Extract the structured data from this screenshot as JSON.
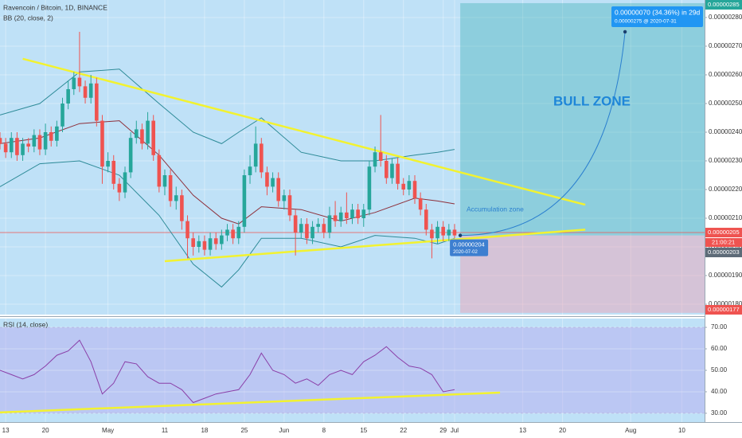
{
  "chart_data": [
    {
      "type": "candlestick",
      "title": "Ravencoin / Bitcoin, 1D, BINANCE",
      "indicator_label": "BB (20, close, 2)",
      "up_color": "#26a69a",
      "down_color": "#ef5350",
      "x": [
        "2020-04-12",
        "2020-04-13",
        "2020-04-14",
        "2020-04-15",
        "2020-04-16",
        "2020-04-17",
        "2020-04-18",
        "2020-04-19",
        "2020-04-20",
        "2020-04-21",
        "2020-04-22",
        "2020-04-23",
        "2020-04-24",
        "2020-04-25",
        "2020-04-26",
        "2020-04-27",
        "2020-04-28",
        "2020-04-29",
        "2020-04-30",
        "2020-05-01",
        "2020-05-02",
        "2020-05-03",
        "2020-05-04",
        "2020-05-05",
        "2020-05-06",
        "2020-05-07",
        "2020-05-08",
        "2020-05-09",
        "2020-05-10",
        "2020-05-11",
        "2020-05-12",
        "2020-05-13",
        "2020-05-14",
        "2020-05-15",
        "2020-05-16",
        "2020-05-17",
        "2020-05-18",
        "2020-05-19",
        "2020-05-20",
        "2020-05-21",
        "2020-05-22",
        "2020-05-23",
        "2020-05-24",
        "2020-05-25",
        "2020-05-26",
        "2020-05-27",
        "2020-05-28",
        "2020-05-29",
        "2020-05-30",
        "2020-05-31",
        "2020-06-01",
        "2020-06-02",
        "2020-06-03",
        "2020-06-04",
        "2020-06-05",
        "2020-06-06",
        "2020-06-07",
        "2020-06-08",
        "2020-06-09",
        "2020-06-10",
        "2020-06-11",
        "2020-06-12",
        "2020-06-13",
        "2020-06-14",
        "2020-06-15",
        "2020-06-16",
        "2020-06-17",
        "2020-06-18",
        "2020-06-19",
        "2020-06-20",
        "2020-06-21",
        "2020-06-22",
        "2020-06-23",
        "2020-06-24",
        "2020-06-25",
        "2020-06-26",
        "2020-06-27",
        "2020-06-28",
        "2020-06-29",
        "2020-06-30",
        "2020-07-01"
      ],
      "ohlc": [
        [
          2.38e-06,
          2.4e-06,
          2.34e-06,
          2.36e-06
        ],
        [
          2.36e-06,
          2.38e-06,
          2.31e-06,
          2.33e-06
        ],
        [
          2.33e-06,
          2.4e-06,
          2.31e-06,
          2.38e-06
        ],
        [
          2.38e-06,
          2.4e-06,
          2.3e-06,
          2.32e-06
        ],
        [
          2.32e-06,
          2.38e-06,
          2.3e-06,
          2.36e-06
        ],
        [
          2.36e-06,
          2.38e-06,
          2.33e-06,
          2.35e-06
        ],
        [
          2.35e-06,
          2.41e-06,
          2.33e-06,
          2.39e-06
        ],
        [
          2.39e-06,
          2.41e-06,
          2.32e-06,
          2.34e-06
        ],
        [
          2.34e-06,
          2.43e-06,
          2.32e-06,
          2.4e-06
        ],
        [
          2.4e-06,
          2.42e-06,
          2.35e-06,
          2.37e-06
        ],
        [
          2.37e-06,
          2.44e-06,
          2.35e-06,
          2.42e-06
        ],
        [
          2.42e-06,
          2.52e-06,
          2.4e-06,
          2.5e-06
        ],
        [
          2.5e-06,
          2.58e-06,
          2.48e-06,
          2.55e-06
        ],
        [
          2.55e-06,
          2.61e-06,
          2.53e-06,
          2.59e-06
        ],
        [
          2.59e-06,
          2.75e-06,
          2.54e-06,
          2.56e-06
        ],
        [
          2.56e-06,
          2.58e-06,
          2.5e-06,
          2.52e-06
        ],
        [
          2.52e-06,
          2.6e-06,
          2.5e-06,
          2.57e-06
        ],
        [
          2.57e-06,
          2.59e-06,
          2.42e-06,
          2.44e-06
        ],
        [
          2.44e-06,
          2.46e-06,
          2.22e-06,
          2.28e-06
        ],
        [
          2.28e-06,
          2.33e-06,
          2.26e-06,
          2.3e-06
        ],
        [
          2.3e-06,
          2.32e-06,
          2.2e-06,
          2.22e-06
        ],
        [
          2.22e-06,
          2.24e-06,
          2.16e-06,
          2.19e-06
        ],
        [
          2.19e-06,
          2.28e-06,
          2.17e-06,
          2.26e-06
        ],
        [
          2.26e-06,
          2.4e-06,
          2.24e-06,
          2.38e-06
        ],
        [
          2.38e-06,
          2.44e-06,
          2.36e-06,
          2.41e-06
        ],
        [
          2.41e-06,
          2.43e-06,
          2.34e-06,
          2.36e-06
        ],
        [
          2.36e-06,
          2.47e-06,
          2.34e-06,
          2.44e-06
        ],
        [
          2.44e-06,
          2.46e-06,
          2.3e-06,
          2.32e-06
        ],
        [
          2.32e-06,
          2.34e-06,
          2.19e-06,
          2.21e-06
        ],
        [
          2.21e-06,
          2.27e-06,
          2.18e-06,
          2.25e-06
        ],
        [
          2.25e-06,
          2.27e-06,
          2.14e-06,
          2.16e-06
        ],
        [
          2.16e-06,
          2.21e-06,
          2.13e-06,
          2.18e-06
        ],
        [
          2.18e-06,
          2.2e-06,
          2.06e-06,
          2.09e-06
        ],
        [
          2.09e-06,
          2.11e-06,
          1.96e-06,
          2.03e-06
        ],
        [
          2.03e-06,
          2.05e-06,
          1.97e-06,
          2e-06
        ],
        [
          2e-06,
          2.04e-06,
          1.98e-06,
          2.02e-06
        ],
        [
          2.02e-06,
          2.04e-06,
          1.97e-06,
          1.99e-06
        ],
        [
          1.99e-06,
          2.05e-06,
          1.97e-06,
          2.03e-06
        ],
        [
          2.03e-06,
          2.05e-06,
          1.99e-06,
          2.01e-06
        ],
        [
          2.01e-06,
          2.06e-06,
          1.99e-06,
          2.04e-06
        ],
        [
          2.04e-06,
          2.08e-06,
          2.02e-06,
          2.06e-06
        ],
        [
          2.06e-06,
          2.08e-06,
          2.01e-06,
          2.03e-06
        ],
        [
          2.03e-06,
          2.09e-06,
          2.01e-06,
          2.07e-06
        ],
        [
          2.07e-06,
          2.27e-06,
          2.05e-06,
          2.25e-06
        ],
        [
          2.25e-06,
          2.32e-06,
          2.22e-06,
          2.28e-06
        ],
        [
          2.28e-06,
          2.42e-06,
          2.26e-06,
          2.36e-06
        ],
        [
          2.36e-06,
          2.38e-06,
          2.24e-06,
          2.26e-06
        ],
        [
          2.26e-06,
          2.28e-06,
          2.18e-06,
          2.21e-06
        ],
        [
          2.21e-06,
          2.26e-06,
          2.19e-06,
          2.24e-06
        ],
        [
          2.24e-06,
          2.26e-06,
          2.14e-06,
          2.16e-06
        ],
        [
          2.16e-06,
          2.2e-06,
          2.13e-06,
          2.18e-06
        ],
        [
          2.18e-06,
          2.2e-06,
          2.09e-06,
          2.11e-06
        ],
        [
          2.11e-06,
          2.13e-06,
          1.97e-06,
          2.05e-06
        ],
        [
          2.05e-06,
          2.1e-06,
          2.03e-06,
          2.08e-06
        ],
        [
          2.08e-06,
          2.1e-06,
          2.01e-06,
          2.03e-06
        ],
        [
          2.03e-06,
          2.09e-06,
          2.01e-06,
          2.07e-06
        ],
        [
          2.07e-06,
          2.1e-06,
          2.05e-06,
          2.08e-06
        ],
        [
          2.08e-06,
          2.1e-06,
          2.03e-06,
          2.05e-06
        ],
        [
          2.05e-06,
          2.14e-06,
          2.03e-06,
          2.11e-06
        ],
        [
          2.11e-06,
          2.16e-06,
          2.07e-06,
          2.09e-06
        ],
        [
          2.09e-06,
          2.14e-06,
          2.07e-06,
          2.12e-06
        ],
        [
          2.12e-06,
          2.19e-06,
          2.08e-06,
          2.1e-06
        ],
        [
          2.1e-06,
          2.15e-06,
          2.08e-06,
          2.13e-06
        ],
        [
          2.13e-06,
          2.15e-06,
          2.08e-06,
          2.1e-06
        ],
        [
          2.1e-06,
          2.15e-06,
          2.07e-06,
          2.13e-06
        ],
        [
          2.13e-06,
          2.3e-06,
          2.11e-06,
          2.28e-06
        ],
        [
          2.28e-06,
          2.35e-06,
          2.26e-06,
          2.33e-06
        ],
        [
          2.33e-06,
          2.46e-06,
          2.28e-06,
          2.3e-06
        ],
        [
          2.3e-06,
          2.32e-06,
          2.22e-06,
          2.24e-06
        ],
        [
          2.24e-06,
          2.31e-06,
          2.22e-06,
          2.29e-06
        ],
        [
          2.29e-06,
          2.31e-06,
          2.2e-06,
          2.22e-06
        ],
        [
          2.22e-06,
          2.24e-06,
          2.18e-06,
          2.2e-06
        ],
        [
          2.2e-06,
          2.25e-06,
          2.18e-06,
          2.23e-06
        ],
        [
          2.23e-06,
          2.25e-06,
          2.15e-06,
          2.17e-06
        ],
        [
          2.17e-06,
          2.19e-06,
          2.11e-06,
          2.13e-06
        ],
        [
          2.13e-06,
          2.15e-06,
          2.04e-06,
          2.06e-06
        ],
        [
          2.06e-06,
          2.08e-06,
          1.96e-06,
          2.03e-06
        ],
        [
          2.03e-06,
          2.09e-06,
          2.01e-06,
          2.07e-06
        ],
        [
          2.07e-06,
          2.09e-06,
          2.02e-06,
          2.04e-06
        ],
        [
          2.04e-06,
          2.08e-06,
          2.02e-06,
          2.06e-06
        ],
        [
          2.06e-06,
          2.08e-06,
          2.03e-06,
          2.04e-06
        ]
      ],
      "bollinger": {
        "x": [
          "2020-04-12",
          "2020-04-19",
          "2020-04-26",
          "2020-05-03",
          "2020-05-10",
          "2020-05-16",
          "2020-05-21",
          "2020-05-24",
          "2020-05-28",
          "2020-06-04",
          "2020-06-11",
          "2020-06-17",
          "2020-06-24",
          "2020-06-28",
          "2020-07-01"
        ],
        "upper": [
          2.46e-06,
          2.5e-06,
          2.61e-06,
          2.62e-06,
          2.5e-06,
          2.4e-06,
          2.36e-06,
          2.4e-06,
          2.45e-06,
          2.33e-06,
          2.3e-06,
          2.3e-06,
          2.32e-06,
          2.33e-06,
          2.34e-06
        ],
        "basis": [
          2.36e-06,
          2.38e-06,
          2.43e-06,
          2.44e-06,
          2.32e-06,
          2.18e-06,
          2.1e-06,
          2.08e-06,
          2.14e-06,
          2.13e-06,
          2.09e-06,
          2.12e-06,
          2.17e-06,
          2.16e-06,
          2.15e-06
        ],
        "lower": [
          2.21e-06,
          2.29e-06,
          2.3e-06,
          2.25e-06,
          2.11e-06,
          1.94e-06,
          1.86e-06,
          1.92e-06,
          2.03e-06,
          2.03e-06,
          2e-06,
          2.04e-06,
          2.03e-06,
          2.01e-06,
          2.03e-06
        ],
        "band_color": "#2e8b98",
        "basis_color": "#8e2f3a"
      },
      "trendlines": [
        {
          "x": [
            "2020-04-16",
            "2020-07-24"
          ],
          "y": [
            2.656e-06,
            2.147e-06
          ],
          "color": "#f2f230"
        },
        {
          "x": [
            "2020-05-11",
            "2020-07-24"
          ],
          "y": [
            1.95e-06,
            2.06e-06
          ],
          "color": "#f2f230"
        }
      ],
      "position": {
        "entry": 2.04e-06,
        "entry_label": "0.00000204",
        "entry_date": "2020-07-02",
        "target": 2.85e-06,
        "target_label": "0.00000285",
        "stop": 1.77e-06,
        "stop_label": "0.00000177"
      },
      "projection": {
        "value": 2.75e-06,
        "date": "2020-07-31",
        "label": "0.00000275 @ 2020-07-31",
        "change_label": "0.00000070 (34.36%) in 29d"
      },
      "current_price": {
        "value": 2.05e-06,
        "label": "0.00000205"
      },
      "countdown": "21:00:21",
      "price_tags": [
        {
          "value": 2.03e-06,
          "label": "0.00000203"
        }
      ],
      "annotations": [
        "BULL ZONE",
        "Accumulation zone"
      ],
      "xlim": [
        "2020-04-12",
        "2020-08-14"
      ],
      "xticks": [
        {
          "value": "2020-04-13",
          "label": "13"
        },
        {
          "value": "2020-04-20",
          "label": "20"
        },
        {
          "value": "2020-05-01",
          "label": "May"
        },
        {
          "value": "2020-05-11",
          "label": "11"
        },
        {
          "value": "2020-05-18",
          "label": "18"
        },
        {
          "value": "2020-05-25",
          "label": "25"
        },
        {
          "value": "2020-06-01",
          "label": "Jun"
        },
        {
          "value": "2020-06-08",
          "label": "8"
        },
        {
          "value": "2020-06-15",
          "label": "15"
        },
        {
          "value": "2020-06-22",
          "label": "22"
        },
        {
          "value": "2020-06-29",
          "label": "29"
        },
        {
          "value": "2020-07-01",
          "label": "Jul"
        },
        {
          "value": "2020-07-13",
          "label": "13"
        },
        {
          "value": "2020-07-20",
          "label": "20"
        },
        {
          "value": "2020-08-01",
          "label": "Aug"
        },
        {
          "value": "2020-08-10",
          "label": "10"
        }
      ],
      "ylim": [
        1.764e-06,
        2.861e-06
      ],
      "yticks": [
        {
          "value": 1.8e-06,
          "label": "0.00000180"
        },
        {
          "value": 1.9e-06,
          "label": "0.00000190"
        },
        {
          "value": 2e-06,
          "label": "0.00000200"
        },
        {
          "value": 2.1e-06,
          "label": "0.00000210"
        },
        {
          "value": 2.2e-06,
          "label": "0.00000220"
        },
        {
          "value": 2.3e-06,
          "label": "0.00000230"
        },
        {
          "value": 2.4e-06,
          "label": "0.00000240"
        },
        {
          "value": 2.5e-06,
          "label": "0.00000250"
        },
        {
          "value": 2.6e-06,
          "label": "0.00000260"
        },
        {
          "value": 2.7e-06,
          "label": "0.00000270"
        },
        {
          "value": 2.8e-06,
          "label": "0.00000280"
        }
      ],
      "grid": true
    },
    {
      "type": "line",
      "title": "RSI (14, close)",
      "color": "#8a3fa8",
      "x": [
        "2020-04-12",
        "2020-04-14",
        "2020-04-16",
        "2020-04-18",
        "2020-04-20",
        "2020-04-22",
        "2020-04-24",
        "2020-04-26",
        "2020-04-28",
        "2020-04-30",
        "2020-05-02",
        "2020-05-04",
        "2020-05-06",
        "2020-05-08",
        "2020-05-10",
        "2020-05-12",
        "2020-05-14",
        "2020-05-16",
        "2020-05-18",
        "2020-05-20",
        "2020-05-22",
        "2020-05-24",
        "2020-05-26",
        "2020-05-28",
        "2020-05-30",
        "2020-06-01",
        "2020-06-03",
        "2020-06-05",
        "2020-06-07",
        "2020-06-09",
        "2020-06-11",
        "2020-06-13",
        "2020-06-15",
        "2020-06-17",
        "2020-06-19",
        "2020-06-21",
        "2020-06-23",
        "2020-06-25",
        "2020-06-27",
        "2020-06-29",
        "2020-07-01"
      ],
      "values": [
        50,
        48,
        46,
        48,
        52,
        57,
        59,
        64,
        54,
        39,
        44,
        54,
        53,
        47,
        44,
        44,
        41,
        35,
        37,
        39,
        40,
        41,
        48,
        58,
        50,
        48,
        44,
        46,
        43,
        48,
        50,
        48,
        54,
        57,
        61,
        56,
        52,
        51,
        48,
        40,
        41
      ],
      "band": [
        30,
        70
      ],
      "trendline": {
        "x": [
          "2020-04-12",
          "2020-07-09"
        ],
        "y": [
          30.4,
          39.6
        ],
        "color": "#f2f230"
      },
      "ylim": [
        25.9,
        74.1
      ],
      "yticks": [
        {
          "value": 30,
          "label": "30.00"
        },
        {
          "value": 40,
          "label": "40.00"
        },
        {
          "value": 50,
          "label": "50.00"
        },
        {
          "value": 60,
          "label": "60.00"
        },
        {
          "value": 70,
          "label": "70.00"
        }
      ],
      "grid": true
    }
  ]
}
